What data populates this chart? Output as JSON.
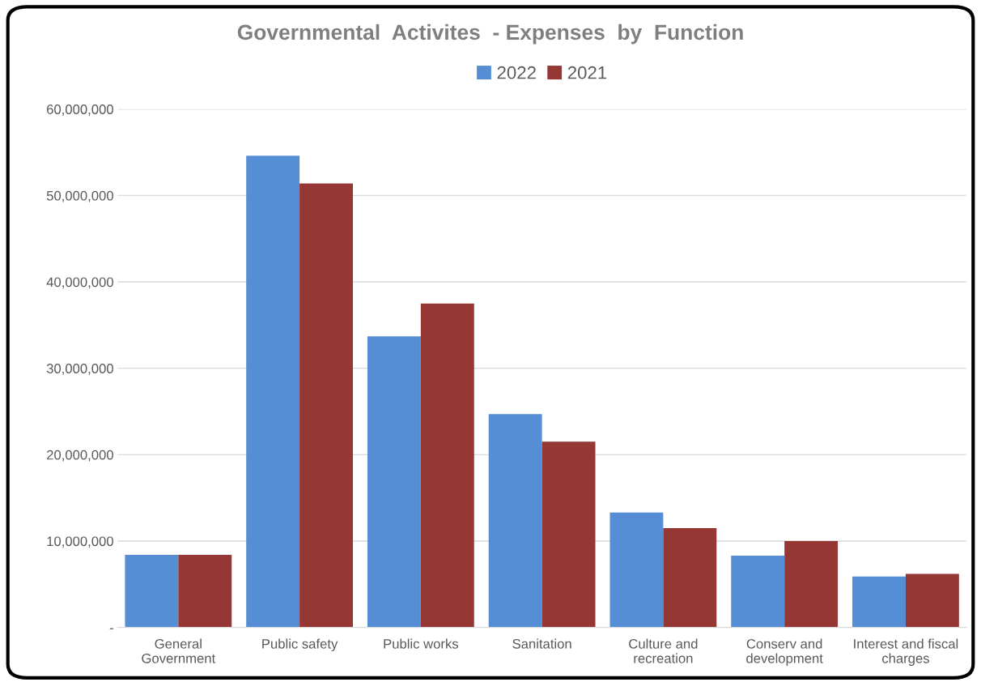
{
  "chart_data": {
    "type": "bar",
    "title": "Governmental  Activites  - Expenses  by  Function",
    "categories": [
      "General\nGovernment",
      "Public safety",
      "Public works",
      "Sanitation",
      "Culture and\nrecreation",
      "Conserv and\ndevelopment",
      "Interest and fiscal\ncharges"
    ],
    "series": [
      {
        "name": "2022",
        "color": "#558ed5",
        "values": [
          8400000,
          54600000,
          33700000,
          24700000,
          13300000,
          8300000,
          5900000
        ]
      },
      {
        "name": "2021",
        "color": "#953735",
        "values": [
          8400000,
          51400000,
          37500000,
          21500000,
          11500000,
          10000000,
          6200000
        ]
      }
    ],
    "ylim": [
      0,
      60000000
    ],
    "yticks": [
      {
        "value": 0,
        "label": "-"
      },
      {
        "value": 10000000,
        "label": "10,000,000"
      },
      {
        "value": 20000000,
        "label": "20,000,000"
      },
      {
        "value": 30000000,
        "label": "30,000,000"
      },
      {
        "value": 40000000,
        "label": "40,000,000"
      },
      {
        "value": 50000000,
        "label": "50,000,000"
      },
      {
        "value": 60000000,
        "label": "60,000,000"
      }
    ],
    "grid": "y",
    "legend": "top"
  }
}
